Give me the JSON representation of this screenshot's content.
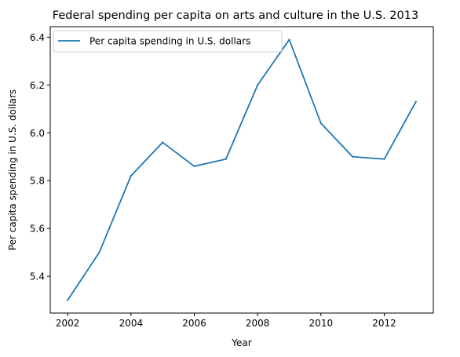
{
  "chart_data": {
    "type": "line",
    "title": "Federal spending per capita on arts and culture in the U.S. 2013",
    "xlabel": "Year",
    "ylabel": "Per capita spending in U.S. dollars",
    "xlim": [
      2001.45,
      2013.55
    ],
    "ylim": [
      5.246,
      6.444
    ],
    "x_ticks": [
      2002,
      2004,
      2006,
      2008,
      2010,
      2012
    ],
    "y_ticks": [
      5.4,
      5.6,
      5.8,
      6.0,
      6.2,
      6.4
    ],
    "y_tick_labels": [
      "5.4",
      "5.6",
      "5.8",
      "6.0",
      "6.2",
      "6.4"
    ],
    "grid": false,
    "legend_position": "top-left",
    "colors": {
      "line": "#1f77b4"
    },
    "x": [
      2002,
      2003,
      2004,
      2005,
      2006,
      2007,
      2008,
      2009,
      2010,
      2011,
      2012,
      2013
    ],
    "series": [
      {
        "name": "Per capita spending in U.S. dollars",
        "values": [
          5.3,
          5.5,
          5.82,
          5.96,
          5.86,
          5.89,
          6.2,
          6.39,
          6.04,
          5.9,
          5.89,
          6.13
        ]
      }
    ]
  }
}
